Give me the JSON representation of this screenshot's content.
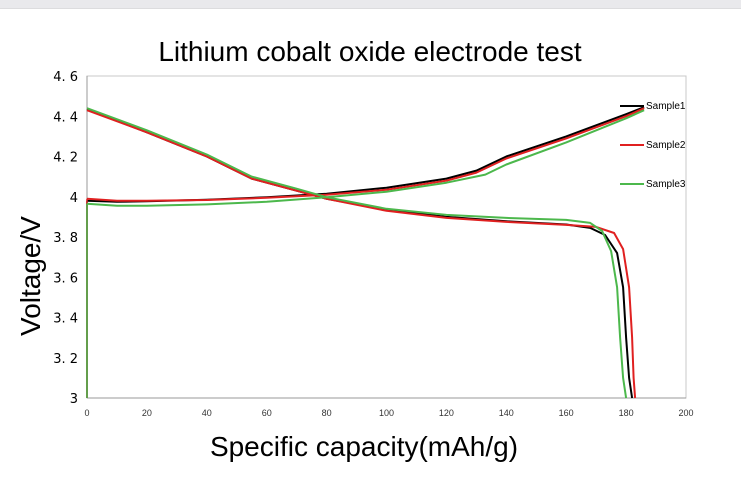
{
  "chart_data": {
    "type": "line",
    "title": "Lithium cobalt oxide electrode test",
    "xlabel": "Specific capacity(mAh/g)",
    "ylabel": "Voltage/V",
    "xlim": [
      0,
      200
    ],
    "ylim": [
      3,
      4.6
    ],
    "xticks": [
      0,
      20,
      40,
      60,
      80,
      100,
      120,
      140,
      160,
      180,
      200
    ],
    "yticks": [
      3,
      3.2,
      3.4,
      3.6,
      3.8,
      4,
      4.2,
      4.4,
      4.6
    ],
    "ytick_labels": [
      "3",
      "3. 2",
      "3. 4",
      "3. 6",
      "3. 8",
      "4",
      "4. 2",
      "4. 4",
      "4. 6"
    ],
    "grid": false,
    "legend_position": "top-right",
    "series": [
      {
        "name": "Sample1",
        "color": "#000000",
        "charge": [
          [
            0,
            3.98
          ],
          [
            10,
            3.975
          ],
          [
            20,
            3.978
          ],
          [
            40,
            3.985
          ],
          [
            60,
            3.998
          ],
          [
            80,
            4.015
          ],
          [
            100,
            4.045
          ],
          [
            120,
            4.09
          ],
          [
            130,
            4.13
          ],
          [
            140,
            4.2
          ],
          [
            160,
            4.3
          ],
          [
            180,
            4.41
          ],
          [
            186,
            4.445
          ]
        ],
        "discharge": [
          [
            0,
            4.435
          ],
          [
            20,
            4.32
          ],
          [
            40,
            4.2
          ],
          [
            55,
            4.09
          ],
          [
            70,
            4.03
          ],
          [
            80,
            3.99
          ],
          [
            100,
            3.935
          ],
          [
            120,
            3.9
          ],
          [
            140,
            3.878
          ],
          [
            160,
            3.862
          ],
          [
            168,
            3.845
          ],
          [
            173,
            3.81
          ],
          [
            177,
            3.72
          ],
          [
            179,
            3.55
          ],
          [
            180,
            3.3
          ],
          [
            181,
            3.1
          ],
          [
            182,
            3.0
          ]
        ]
      },
      {
        "name": "Sample2",
        "color": "#e02020",
        "charge": [
          [
            0,
            3.99
          ],
          [
            10,
            3.98
          ],
          [
            20,
            3.98
          ],
          [
            40,
            3.984
          ],
          [
            60,
            3.995
          ],
          [
            80,
            4.01
          ],
          [
            100,
            4.035
          ],
          [
            120,
            4.08
          ],
          [
            130,
            4.12
          ],
          [
            140,
            4.19
          ],
          [
            160,
            4.29
          ],
          [
            180,
            4.4
          ],
          [
            186,
            4.44
          ]
        ],
        "discharge": [
          [
            0,
            4.43
          ],
          [
            20,
            4.32
          ],
          [
            40,
            4.2
          ],
          [
            55,
            4.09
          ],
          [
            70,
            4.03
          ],
          [
            80,
            3.99
          ],
          [
            100,
            3.93
          ],
          [
            120,
            3.895
          ],
          [
            140,
            3.875
          ],
          [
            160,
            3.86
          ],
          [
            170,
            3.85
          ],
          [
            176,
            3.82
          ],
          [
            179,
            3.74
          ],
          [
            181,
            3.55
          ],
          [
            182,
            3.3
          ],
          [
            182.5,
            3.1
          ],
          [
            183,
            3.0
          ]
        ]
      },
      {
        "name": "Sample3",
        "color": "#4cb84c",
        "charge": [
          [
            0,
            3.965
          ],
          [
            10,
            3.955
          ],
          [
            20,
            3.955
          ],
          [
            40,
            3.962
          ],
          [
            60,
            3.975
          ],
          [
            80,
            3.998
          ],
          [
            100,
            4.025
          ],
          [
            120,
            4.07
          ],
          [
            133,
            4.11
          ],
          [
            140,
            4.16
          ],
          [
            160,
            4.27
          ],
          [
            180,
            4.39
          ],
          [
            186,
            4.43
          ]
        ],
        "discharge": [
          [
            0,
            4.44
          ],
          [
            20,
            4.33
          ],
          [
            40,
            4.21
          ],
          [
            55,
            4.1
          ],
          [
            70,
            4.04
          ],
          [
            80,
            3.998
          ],
          [
            100,
            3.94
          ],
          [
            120,
            3.91
          ],
          [
            140,
            3.895
          ],
          [
            160,
            3.885
          ],
          [
            168,
            3.87
          ],
          [
            172,
            3.83
          ],
          [
            175,
            3.73
          ],
          [
            177,
            3.55
          ],
          [
            178,
            3.3
          ],
          [
            179,
            3.1
          ],
          [
            180,
            3.0
          ]
        ]
      }
    ]
  }
}
